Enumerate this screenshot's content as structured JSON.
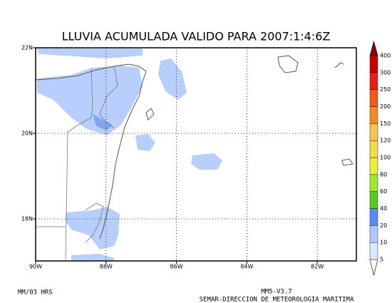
{
  "header": {
    "title": "LLUVIA ACUMULADA VALIDO PARA 2007:1:4:6Z"
  },
  "map": {
    "lat_labels": [
      "22N",
      "20N",
      "18N"
    ],
    "lon_labels": [
      "90W",
      "88W",
      "86W",
      "84W",
      "82W"
    ]
  },
  "colorbar": {
    "levels": [
      "5",
      "10",
      "20",
      "40",
      "60",
      "80",
      "100",
      "120",
      "150",
      "200",
      "250",
      "300",
      "400"
    ],
    "colors": [
      "#ffffff",
      "#dce6ff",
      "#b4c8ff",
      "#5a8cf0",
      "#5ac81e",
      "#a0e632",
      "#e6f03c",
      "#f0dc50",
      "#f0c850",
      "#f08c28",
      "#f05a1e",
      "#e61e1e",
      "#c80000",
      "#8c0014"
    ]
  },
  "footer": {
    "left": "MM/03 HRS",
    "model": "MM5-V3.7",
    "agency": "SEMAR-DIRECCION DE METEOROLOGIA MARITIMA"
  }
}
